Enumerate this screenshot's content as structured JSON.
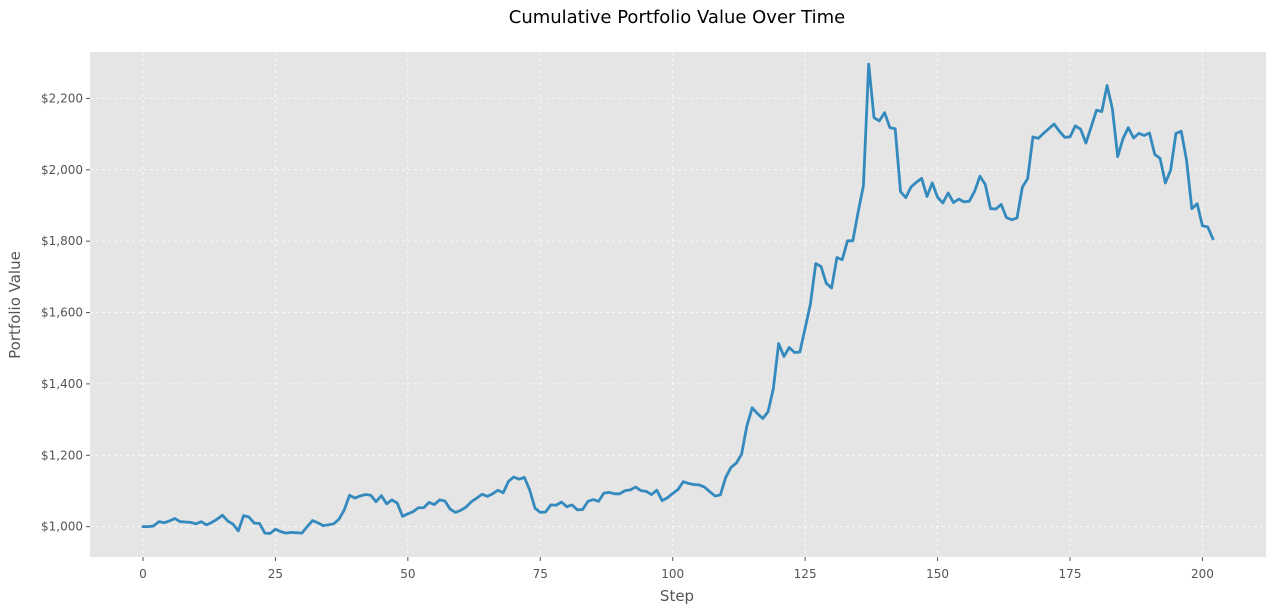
{
  "chart_data": {
    "type": "line",
    "title": "Cumulative Portfolio Value Over Time",
    "xlabel": "Step",
    "ylabel": "Portfolio Value",
    "xlim": [
      -10,
      212
    ],
    "ylim": [
      915,
      2330
    ],
    "grid": true,
    "legend": "none",
    "x_ticks": [
      0,
      25,
      50,
      75,
      100,
      125,
      150,
      175,
      200
    ],
    "x_tick_labels": [
      "0",
      "25",
      "50",
      "75",
      "100",
      "125",
      "150",
      "175",
      "200"
    ],
    "y_ticks": [
      1000,
      1200,
      1400,
      1600,
      1800,
      2000,
      2200
    ],
    "y_tick_labels": [
      "$1,000",
      "$1,200",
      "$1,400",
      "$1,600",
      "$1,800",
      "$2,000",
      "$2,200"
    ],
    "colors": {
      "plot_background": "#e5e5e5",
      "line": "#348abd"
    },
    "series": [
      {
        "values": [
          1000,
          1000,
          1002,
          1014,
          1011,
          1016,
          1023,
          1014,
          1013,
          1012,
          1008,
          1014,
          1005,
          1012,
          1021,
          1032,
          1016,
          1007,
          988,
          1031,
          1027,
          1010,
          1009,
          982,
          981,
          993,
          986,
          982,
          984,
          983,
          982,
          1000,
          1017,
          1011,
          1003,
          1005,
          1008,
          1021,
          1047,
          1088,
          1080,
          1086,
          1090,
          1088,
          1070,
          1087,
          1064,
          1075,
          1066,
          1029,
          1036,
          1042,
          1053,
          1053,
          1068,
          1062,
          1075,
          1072,
          1049,
          1040,
          1046,
          1055,
          1070,
          1080,
          1091,
          1085,
          1092,
          1102,
          1095,
          1127,
          1139,
          1133,
          1138,
          1103,
          1052,
          1040,
          1041,
          1061,
          1060,
          1069,
          1056,
          1061,
          1047,
          1048,
          1071,
          1076,
          1071,
          1094,
          1096,
          1092,
          1092,
          1101,
          1103,
          1111,
          1101,
          1099,
          1090,
          1102,
          1073,
          1081,
          1093,
          1104,
          1126,
          1121,
          1118,
          1117,
          1111,
          1098,
          1086,
          1089,
          1138,
          1166,
          1178,
          1203,
          1282,
          1333,
          1317,
          1303,
          1322,
          1387,
          1513,
          1477,
          1502,
          1488,
          1489,
          1556,
          1624,
          1737,
          1729,
          1682,
          1669,
          1754,
          1748,
          1801,
          1801,
          1881,
          1955,
          2296,
          2146,
          2137,
          2160,
          2118,
          2115,
          1939,
          1922,
          1952,
          1965,
          1976,
          1925,
          1963,
          1923,
          1907,
          1935,
          1908,
          1918,
          1910,
          1912,
          1940,
          1982,
          1959,
          1891,
          1890,
          1903,
          1866,
          1860,
          1865,
          1951,
          1975,
          2092,
          2088,
          2102,
          2115,
          2128,
          2108,
          2091,
          2092,
          2123,
          2114,
          2075,
          2120,
          2167,
          2163,
          2236,
          2171,
          2037,
          2087,
          2118,
          2089,
          2102,
          2096,
          2103,
          2043,
          2032,
          1963,
          1999,
          2102,
          2108,
          2027,
          1891,
          1905,
          1843,
          1840,
          1806
        ]
      }
    ]
  }
}
